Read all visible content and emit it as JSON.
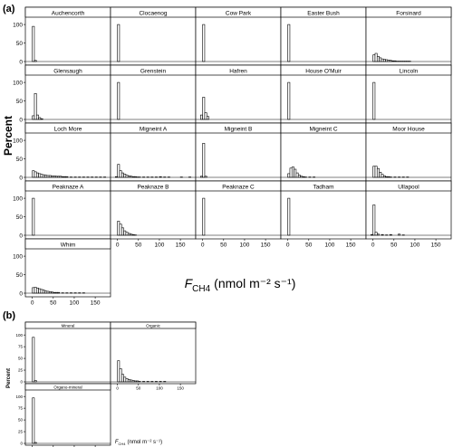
{
  "panel_a_label": "(a)",
  "panel_b_label": "(b)",
  "panel_a_ylabel": "Percent",
  "panel_b_ylabel": "Percent",
  "panel_a_xlabel": {
    "prefix": "F",
    "sub": "CH4",
    "unit": "(nmol m⁻² s⁻¹)"
  },
  "panel_b_xlabel": {
    "prefix": "F",
    "sub": "CH4",
    "unit": "(nmol m⁻² s⁻¹)"
  },
  "chart_data": [
    {
      "type": "bar",
      "panel": "a",
      "subtype": "faceted-histogram",
      "x_ticks": [
        0,
        50,
        100,
        150
      ],
      "y_ticks": [
        0,
        50,
        100
      ],
      "xlim": [
        -10,
        180
      ],
      "ylim": [
        0,
        110
      ],
      "bin_width": 5,
      "facets": [
        {
          "name": "Auchencorth",
          "bins": [
            [
              0,
              95
            ],
            [
              5,
              3
            ]
          ]
        },
        {
          "name": "Clocaenog",
          "bins": [
            [
              0,
              100
            ]
          ]
        },
        {
          "name": "Cow Park",
          "bins": [
            [
              0,
              100
            ]
          ]
        },
        {
          "name": "Easter Bush",
          "bins": [
            [
              0,
              100
            ]
          ]
        },
        {
          "name": "Forsinard",
          "bins": [
            [
              0,
              18
            ],
            [
              5,
              22
            ],
            [
              10,
              14
            ],
            [
              15,
              10
            ],
            [
              20,
              7
            ],
            [
              25,
              6
            ],
            [
              30,
              5
            ],
            [
              35,
              4
            ],
            [
              40,
              3
            ],
            [
              45,
              2
            ],
            [
              50,
              2
            ],
            [
              55,
              1
            ],
            [
              60,
              1
            ],
            [
              65,
              1
            ],
            [
              70,
              1
            ],
            [
              75,
              1
            ],
            [
              80,
              1
            ],
            [
              85,
              1
            ]
          ]
        },
        {
          "name": "Glensaugh",
          "bins": [
            [
              0,
              10
            ],
            [
              5,
              70
            ],
            [
              10,
              12
            ],
            [
              15,
              5
            ],
            [
              20,
              2
            ]
          ]
        },
        {
          "name": "Grenstein",
          "bins": [
            [
              0,
              100
            ]
          ]
        },
        {
          "name": "Hafren",
          "bins": [
            [
              -5,
              12
            ],
            [
              0,
              60
            ],
            [
              5,
              18
            ],
            [
              10,
              8
            ]
          ]
        },
        {
          "name": "House O'Muir",
          "bins": [
            [
              0,
              100
            ]
          ]
        },
        {
          "name": "Lincoln",
          "bins": [
            [
              0,
              100
            ]
          ]
        },
        {
          "name": "Loch More",
          "bins": [
            [
              0,
              18
            ],
            [
              5,
              15
            ],
            [
              10,
              12
            ],
            [
              15,
              10
            ],
            [
              20,
              8
            ],
            [
              25,
              7
            ],
            [
              30,
              6
            ],
            [
              35,
              5
            ],
            [
              40,
              5
            ],
            [
              45,
              4
            ],
            [
              50,
              4
            ],
            [
              55,
              3
            ],
            [
              60,
              3
            ],
            [
              65,
              3
            ],
            [
              70,
              2
            ],
            [
              75,
              2
            ],
            [
              80,
              2
            ],
            [
              90,
              1
            ],
            [
              100,
              1
            ],
            [
              110,
              1
            ],
            [
              120,
              1
            ],
            [
              130,
              1
            ],
            [
              140,
              1
            ],
            [
              150,
              1
            ],
            [
              160,
              1
            ],
            [
              170,
              1
            ]
          ]
        },
        {
          "name": "Migneint A",
          "bins": [
            [
              -5,
              2
            ],
            [
              0,
              35
            ],
            [
              5,
              18
            ],
            [
              10,
              12
            ],
            [
              15,
              9
            ],
            [
              20,
              6
            ],
            [
              25,
              4
            ],
            [
              30,
              3
            ],
            [
              35,
              2
            ],
            [
              40,
              2
            ],
            [
              45,
              1
            ],
            [
              50,
              1
            ],
            [
              60,
              1
            ],
            [
              70,
              1
            ],
            [
              80,
              1
            ],
            [
              90,
              1
            ],
            [
              100,
              2
            ],
            [
              110,
              1
            ],
            [
              120,
              1
            ],
            [
              150,
              1
            ],
            [
              170,
              1
            ]
          ]
        },
        {
          "name": "Migneint B",
          "bins": [
            [
              -5,
              3
            ],
            [
              0,
              92
            ],
            [
              5,
              3
            ]
          ]
        },
        {
          "name": "Migneint C",
          "bins": [
            [
              0,
              10
            ],
            [
              5,
              25
            ],
            [
              10,
              28
            ],
            [
              15,
              22
            ],
            [
              20,
              12
            ],
            [
              25,
              6
            ],
            [
              30,
              3
            ],
            [
              35,
              2
            ],
            [
              40,
              1
            ],
            [
              50,
              1
            ],
            [
              60,
              1
            ]
          ]
        },
        {
          "name": "Moor House",
          "bins": [
            [
              0,
              30
            ],
            [
              5,
              30
            ],
            [
              10,
              24
            ],
            [
              15,
              14
            ],
            [
              20,
              8
            ],
            [
              25,
              4
            ],
            [
              30,
              2
            ],
            [
              35,
              2
            ],
            [
              40,
              1
            ],
            [
              50,
              1
            ],
            [
              60,
              1
            ],
            [
              70,
              1
            ],
            [
              80,
              1
            ]
          ]
        },
        {
          "name": "Peaknaze A",
          "bins": [
            [
              0,
              100
            ]
          ]
        },
        {
          "name": "Peaknaze B",
          "bins": [
            [
              0,
              38
            ],
            [
              5,
              30
            ],
            [
              10,
              20
            ],
            [
              15,
              12
            ],
            [
              20,
              8
            ],
            [
              25,
              5
            ],
            [
              30,
              3
            ],
            [
              35,
              2
            ],
            [
              40,
              1
            ]
          ]
        },
        {
          "name": "Peaknaze C",
          "bins": [
            [
              0,
              100
            ]
          ]
        },
        {
          "name": "Tadham",
          "bins": [
            [
              0,
              100
            ]
          ]
        },
        {
          "name": "Ullapool",
          "bins": [
            [
              -5,
              2
            ],
            [
              0,
              82
            ],
            [
              5,
              8
            ],
            [
              10,
              3
            ],
            [
              20,
              2
            ],
            [
              30,
              1
            ],
            [
              40,
              2
            ],
            [
              60,
              3
            ],
            [
              70,
              1
            ]
          ]
        },
        {
          "name": "Whim",
          "bins": [
            [
              0,
              15
            ],
            [
              5,
              16
            ],
            [
              10,
              14
            ],
            [
              15,
              12
            ],
            [
              20,
              10
            ],
            [
              25,
              8
            ],
            [
              30,
              6
            ],
            [
              35,
              5
            ],
            [
              40,
              4
            ],
            [
              45,
              3
            ],
            [
              50,
              2
            ],
            [
              55,
              2
            ],
            [
              60,
              2
            ],
            [
              70,
              1
            ],
            [
              80,
              1
            ],
            [
              90,
              1
            ],
            [
              100,
              1
            ],
            [
              110,
              1
            ],
            [
              120,
              1
            ]
          ]
        }
      ]
    },
    {
      "type": "bar",
      "panel": "b",
      "subtype": "faceted-histogram",
      "x_ticks": [
        0,
        50,
        100,
        150
      ],
      "y_ticks": [
        0,
        25,
        50,
        75,
        100
      ],
      "xlim": [
        -10,
        180
      ],
      "ylim": [
        0,
        110
      ],
      "bin_width": 5,
      "facets": [
        {
          "name": "Mineral",
          "bins": [
            [
              0,
              95
            ],
            [
              5,
              3
            ]
          ]
        },
        {
          "name": "Organic",
          "bins": [
            [
              0,
              45
            ],
            [
              5,
              28
            ],
            [
              10,
              16
            ],
            [
              15,
              10
            ],
            [
              20,
              7
            ],
            [
              25,
              5
            ],
            [
              30,
              4
            ],
            [
              35,
              3
            ],
            [
              40,
              2
            ],
            [
              45,
              2
            ],
            [
              50,
              1
            ],
            [
              60,
              1
            ],
            [
              70,
              1
            ],
            [
              80,
              1
            ],
            [
              90,
              1
            ],
            [
              100,
              1
            ],
            [
              110,
              1
            ]
          ]
        },
        {
          "name": "Organo-mineral",
          "bins": [
            [
              0,
              97
            ],
            [
              5,
              2
            ]
          ]
        }
      ]
    }
  ]
}
